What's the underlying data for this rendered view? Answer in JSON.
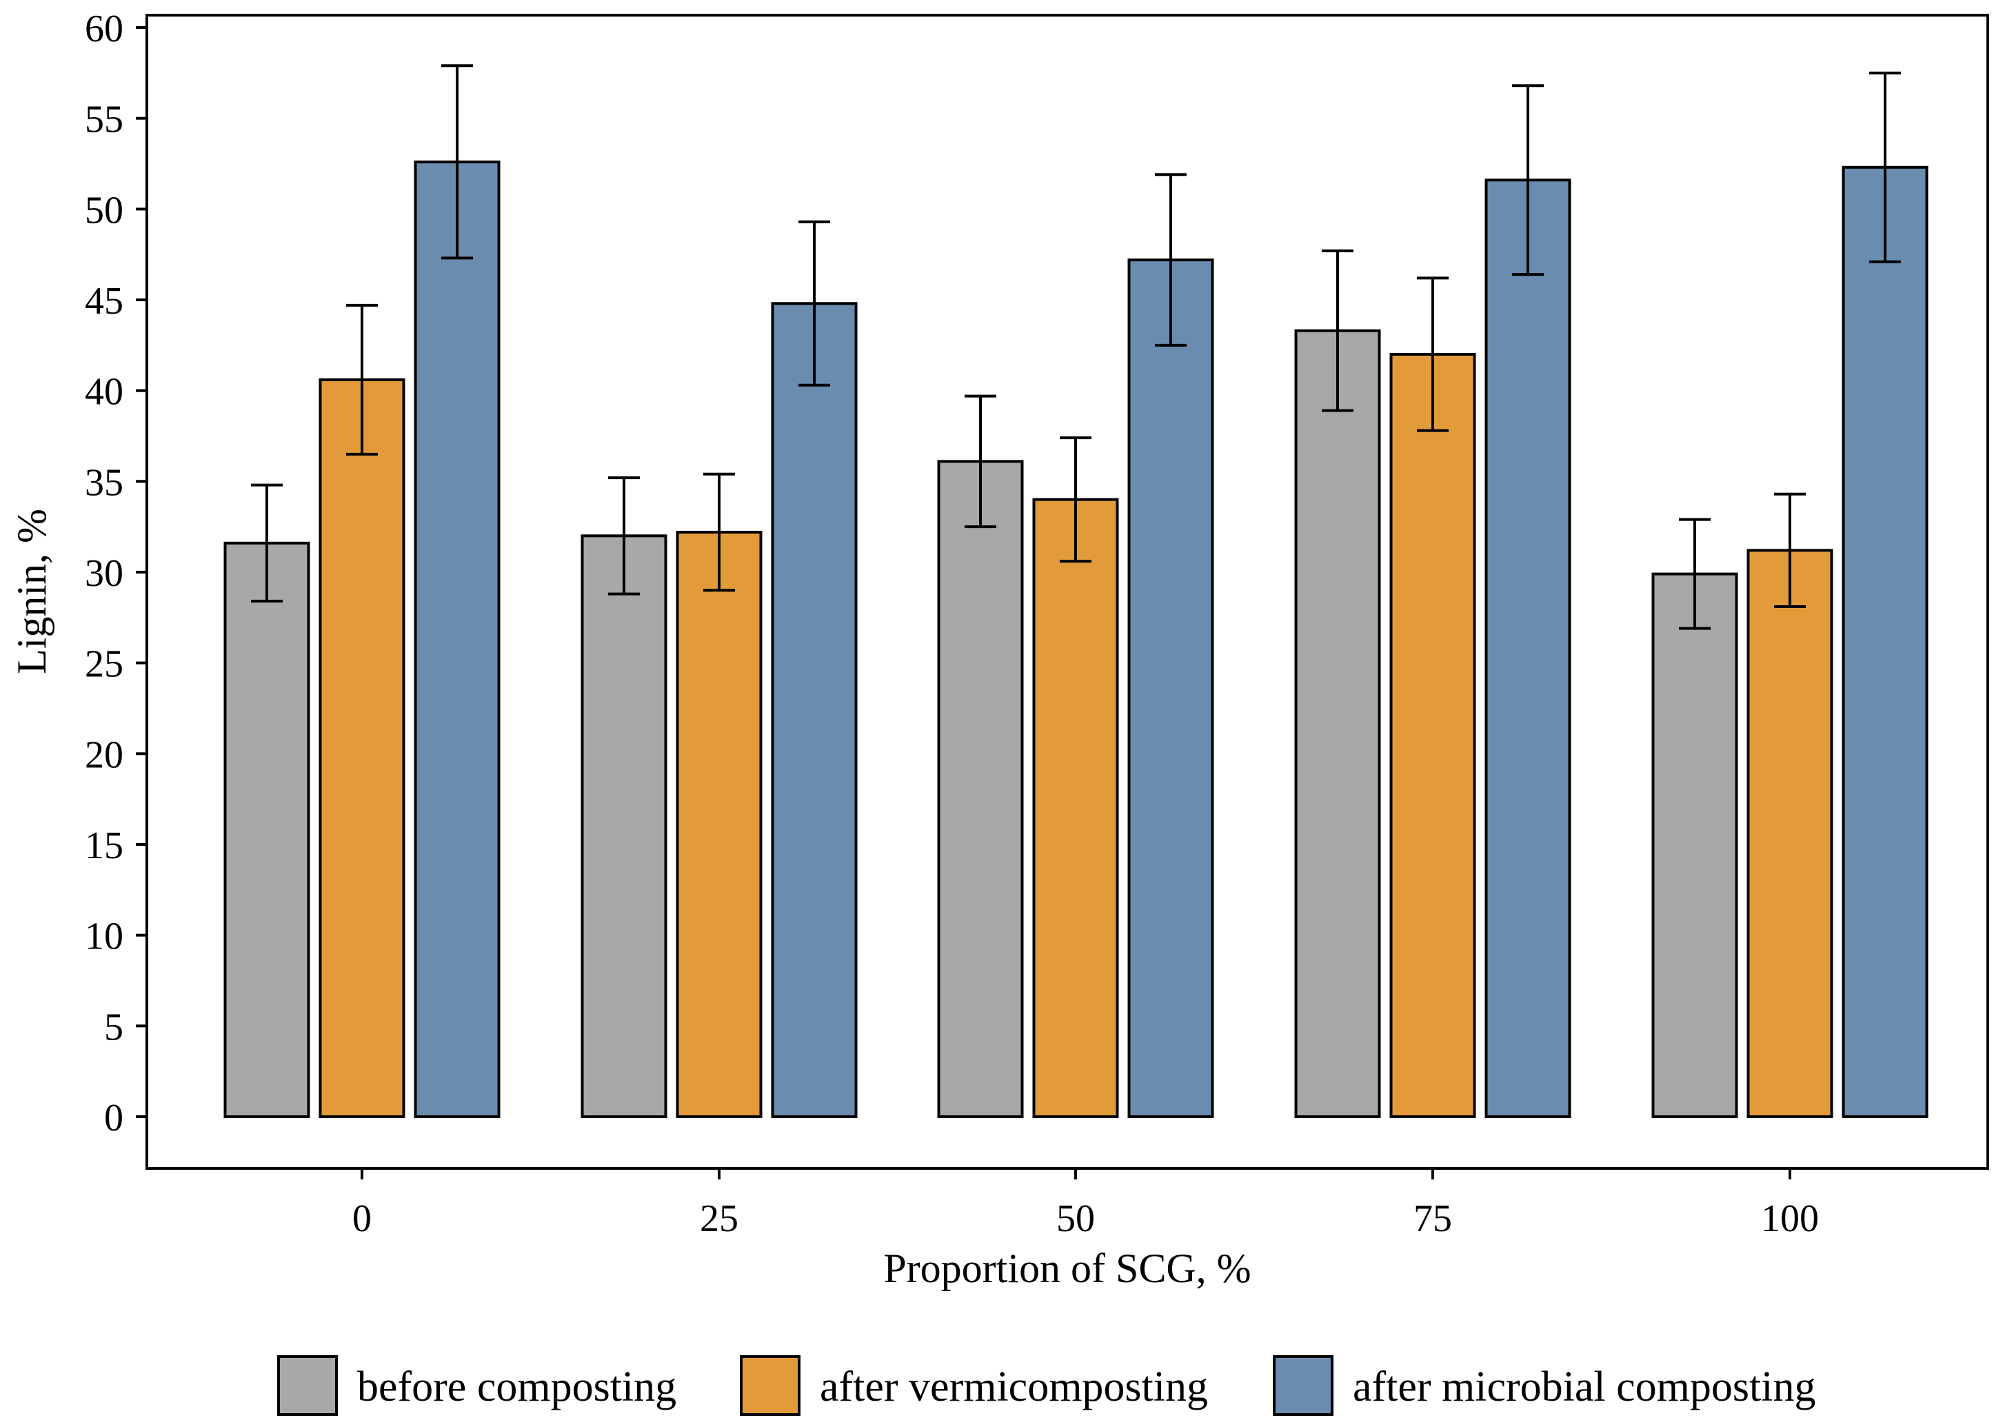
{
  "chart_data": {
    "type": "bar",
    "title": "",
    "xlabel": "Proportion of SCG, %",
    "ylabel": "Lignin, %",
    "categories": [
      "0",
      "25",
      "50",
      "75",
      "100"
    ],
    "ylim": [
      -3,
      60
    ],
    "yticks": [
      0,
      5,
      10,
      15,
      20,
      25,
      30,
      35,
      40,
      45,
      50,
      55,
      60
    ],
    "grid": false,
    "legend_position": "bottom",
    "series": [
      {
        "name": "before composting",
        "color": "#a8a8a8",
        "values": [
          31.6,
          32.0,
          36.1,
          43.3,
          29.9
        ],
        "errors": [
          3.2,
          3.2,
          3.6,
          4.4,
          3.0
        ]
      },
      {
        "name": "after vermicomposting",
        "color": "#e39b3a",
        "values": [
          40.6,
          32.2,
          34.0,
          42.0,
          31.2
        ],
        "errors": [
          4.1,
          3.2,
          3.4,
          4.2,
          3.1
        ]
      },
      {
        "name": "after microbial composting",
        "color": "#6a8caf",
        "values": [
          52.6,
          44.8,
          47.2,
          51.6,
          52.3
        ],
        "errors": [
          5.3,
          4.5,
          4.7,
          5.2,
          5.2
        ]
      }
    ]
  }
}
